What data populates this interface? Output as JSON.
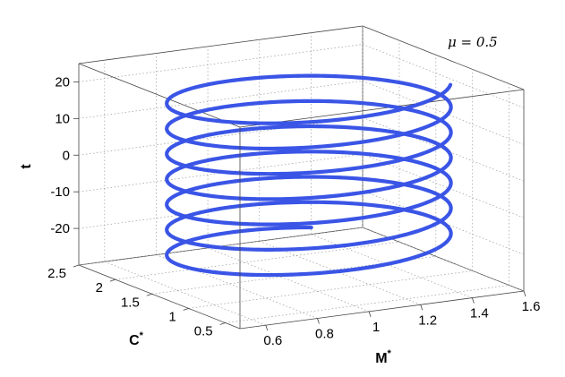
{
  "chart_data": {
    "type": "line3d",
    "annotation": "μ = 0.5",
    "xlabel": "M",
    "xlabel_sup": "*",
    "ylabel": "C",
    "ylabel_sup": "*",
    "zlabel": "t",
    "x_ticks": [
      "0.6",
      "0.8",
      "1",
      "1.2",
      "1.4",
      "1.6"
    ],
    "y_ticks": [
      "0.5",
      "1",
      "1.5",
      "2",
      "2.5"
    ],
    "z_ticks": [
      "-20",
      "-10",
      "0",
      "10",
      "20"
    ],
    "xlim": [
      0.5,
      1.6
    ],
    "ylim": [
      0.3,
      2.5
    ],
    "zlim": [
      -30,
      25
    ],
    "grid": true,
    "series": [
      {
        "color": "#3a55e6",
        "t_range": [
          -24,
          22.5
        ],
        "x_range": [
          0.57,
          1.56
        ],
        "y_range": [
          0.5,
          2.2
        ],
        "period_t": 6.9
      }
    ]
  }
}
